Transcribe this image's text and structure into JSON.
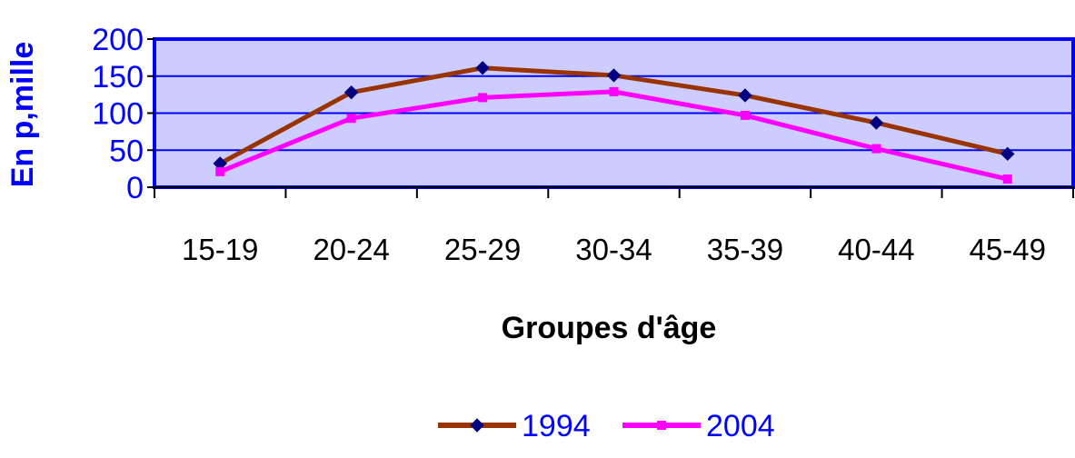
{
  "chart_data": {
    "type": "line",
    "categories": [
      "15-19",
      "20-24",
      "25-29",
      "30-34",
      "35-39",
      "40-44",
      "45-49"
    ],
    "series": [
      {
        "name": "1994",
        "values": [
          32,
          128,
          161,
          151,
          124,
          87,
          45
        ],
        "color": "#993300",
        "marker": "diamond"
      },
      {
        "name": "2004",
        "values": [
          21,
          93,
          121,
          129,
          97,
          52,
          11
        ],
        "color": "#ff00ff",
        "marker": "square"
      }
    ],
    "title": "",
    "xlabel": "Groupes d'âge",
    "ylabel": "En p,mille",
    "ylim": [
      0,
      200
    ],
    "yticks": [
      "0",
      "50",
      "100",
      "150",
      "200"
    ],
    "grid": true,
    "legend_position": "bottom",
    "colors": {
      "plot_background": "#ccccff",
      "frame": "#0000ff",
      "gridlines": "#0000ff",
      "axis_text": "#0000ff",
      "marker_1994": "#000080"
    }
  }
}
